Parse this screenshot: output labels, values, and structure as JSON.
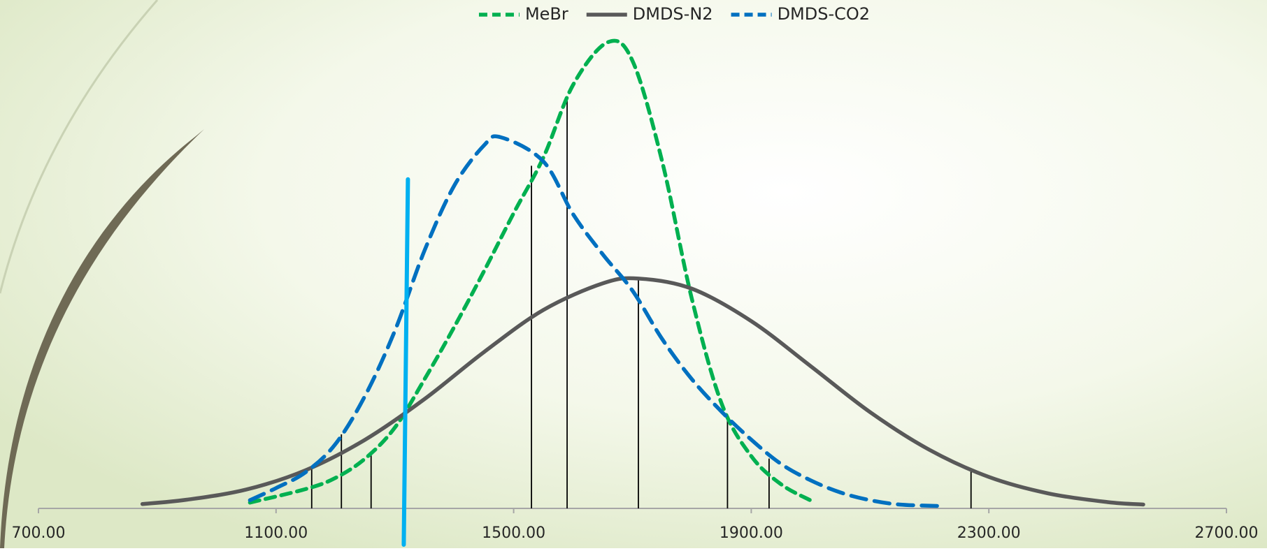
{
  "chart_data": {
    "type": "line",
    "xlim": [
      700,
      2700
    ],
    "ylim": [
      0,
      100
    ],
    "xticks": [
      {
        "value": 700,
        "label": "700.00"
      },
      {
        "value": 1100,
        "label": "1100.00"
      },
      {
        "value": 1500,
        "label": "1500.00"
      },
      {
        "value": 1900,
        "label": "1900.00"
      },
      {
        "value": 2300,
        "label": "2300.00"
      },
      {
        "value": 2700,
        "label": "2700.00"
      }
    ],
    "legend_position": "top",
    "series": [
      {
        "name": "MeBr",
        "color": "#00b050",
        "line_style": "dashed",
        "x": [
          1056,
          1150,
          1200,
          1250,
          1300,
          1350,
          1400,
          1450,
          1500,
          1550,
          1600,
          1658,
          1700,
          1750,
          1800,
          1850,
          1900,
          1950,
          1999
        ],
        "values": [
          1.2,
          4.0,
          6.3,
          10.3,
          16.7,
          26.7,
          37.5,
          49,
          61,
          72.5,
          87.5,
          96.3,
          92.5,
          71.7,
          43.3,
          21.7,
          10.8,
          5,
          1.7
        ]
      },
      {
        "name": "DMDS-N2",
        "color": "#595959",
        "line_style": "solid",
        "x": [
          875,
          950,
          1050,
          1150,
          1250,
          1350,
          1450,
          1550,
          1650,
          1710,
          1800,
          1900,
          2000,
          2100,
          2200,
          2300,
          2400,
          2500,
          2560
        ],
        "values": [
          0.9,
          1.8,
          3.9,
          7.9,
          14.2,
          22.6,
          32.3,
          41.0,
          46.5,
          47.5,
          45.4,
          38.7,
          29.4,
          19.9,
          12.1,
          6.5,
          3.1,
          1.3,
          0.8
        ]
      },
      {
        "name": "DMDS-CO2",
        "color": "#0070c0",
        "line_style": "long-dashed",
        "x": [
          1056,
          1100,
          1150,
          1200,
          1250,
          1300,
          1350,
          1400,
          1450,
          1478,
          1550,
          1600,
          1650,
          1700,
          1750,
          1800,
          1850,
          1900,
          1950,
          2000,
          2050,
          2100,
          2150,
          2216
        ],
        "values": [
          1.7,
          4.2,
          7.5,
          13.3,
          23.3,
          36.7,
          53.3,
          66.7,
          75,
          76.7,
          71.7,
          60.8,
          52.5,
          45,
          35,
          26.7,
          20,
          14.2,
          9.2,
          5.8,
          3.3,
          1.7,
          0.8,
          0.5
        ]
      }
    ],
    "drop_lines": {
      "color": "#000000",
      "x": [
        1160,
        1210,
        1260,
        1530,
        1590,
        1710,
        1860,
        1930,
        2270
      ],
      "y": [
        8.7,
        15.3,
        11.7,
        70.8,
        85,
        47.5,
        18.7,
        10.3,
        8
      ]
    },
    "marker_line": {
      "color": "#00b0f0",
      "x": [
        1322,
        1315
      ],
      "y": [
        68,
        -7.5
      ]
    }
  }
}
